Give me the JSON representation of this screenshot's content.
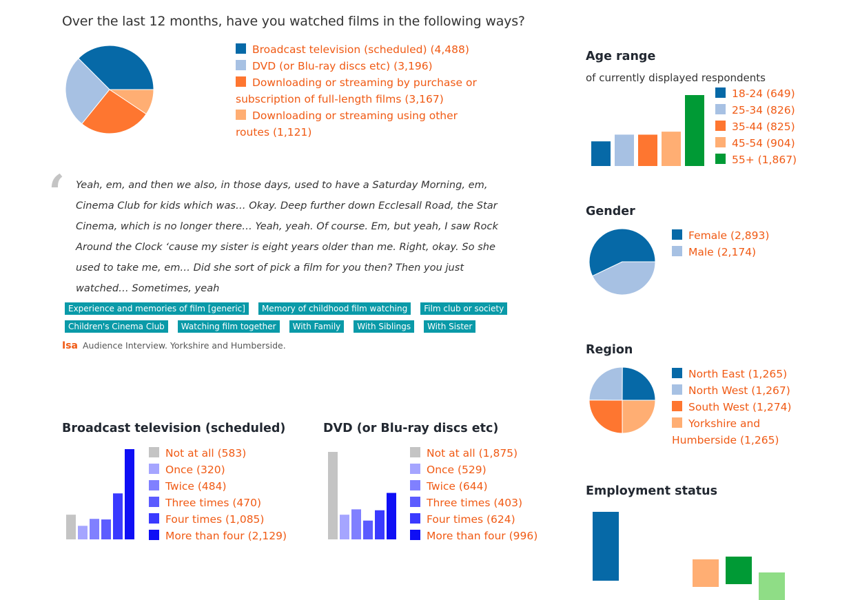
{
  "colors": {
    "blue": "#0669a7",
    "light_blue": "#a7c1e3",
    "orange": "#fe7630",
    "light_orange": "#ffae73",
    "green": "#009a35",
    "light_green": "#8fdd86",
    "legend_text": "#f05a14",
    "tag_bg": "#0a9aa8"
  },
  "question": "Over the last 12 months, have you watched films in the following ways?",
  "quote": {
    "text": "Yeah, em, and then we also, in those days, used to have a Saturday Morning, em, Cinema Club for kids which was… Okay. Deep further down Ecclesall Road, the Star Cinema, which is no longer there… Yeah, yeah. Of course. Em, but yeah, I saw Rock Around the Clock ‘cause my sister is eight years older than me. Right, okay. So she used to take me, em… Did she sort of pick a film for you then? Then you just watched… Sometimes, yeah",
    "tags": [
      "Experience and memories of film [generic]",
      "Memory of childhood film watching",
      "Film club or society",
      "Children's Cinema Club",
      "Watching film together",
      "With Family",
      "With Siblings",
      "With Sister"
    ],
    "speaker": "Isa",
    "source": "Audience Interview. Yorkshire and Humberside."
  },
  "chart_data": [
    {
      "type": "pie",
      "id": "ways",
      "title": "",
      "categories": [
        "Broadcast television (scheduled)",
        "DVD (or Blu-ray discs etc)",
        "Downloading or streaming by purchase or subscription of full-length films",
        "Downloading or streaming using other routes"
      ],
      "values": [
        4488,
        3196,
        3167,
        1121
      ],
      "colors": [
        "#0669a7",
        "#a7c1e3",
        "#fe7630",
        "#ffae73"
      ],
      "legend": "right"
    },
    {
      "type": "bar",
      "id": "age",
      "title": "Age range",
      "subtitle": "of currently displayed respondents",
      "categories": [
        "18-24",
        "25-34",
        "35-44",
        "45-54",
        "55+"
      ],
      "values": [
        649,
        826,
        825,
        904,
        1867
      ],
      "colors": [
        "#0669a7",
        "#a7c1e3",
        "#fe7630",
        "#ffae73",
        "#009a35"
      ],
      "legend": "right"
    },
    {
      "type": "pie",
      "id": "gender",
      "title": "Gender",
      "categories": [
        "Female",
        "Male"
      ],
      "values": [
        2893,
        2174
      ],
      "colors": [
        "#0669a7",
        "#a7c1e3"
      ],
      "legend": "right"
    },
    {
      "type": "pie",
      "id": "region",
      "title": "Region",
      "categories": [
        "North East",
        "North West",
        "South West",
        "Yorkshire and Humberside"
      ],
      "values": [
        1265,
        1267,
        1274,
        1265
      ],
      "colors": [
        "#0669a7",
        "#a7c1e3",
        "#fe7630",
        "#ffae73"
      ],
      "legend": "right"
    },
    {
      "type": "bar",
      "id": "broadcast",
      "title": "Broadcast television (scheduled)",
      "categories": [
        "Not at all",
        "Once",
        "Twice",
        "Three times",
        "Four times",
        "More than four"
      ],
      "values": [
        583,
        320,
        484,
        470,
        1085,
        2129
      ],
      "colors": [
        "#c4c4c4",
        "#a5a5ff",
        "#8080ff",
        "#5c5cff",
        "#3a3aff",
        "#0f0ff5"
      ],
      "legend": "right"
    },
    {
      "type": "bar",
      "id": "dvd",
      "title": "DVD (or Blu-ray discs etc)",
      "categories": [
        "Not at all",
        "Once",
        "Twice",
        "Three times",
        "Four times",
        "More than four"
      ],
      "values": [
        1875,
        529,
        644,
        403,
        624,
        996
      ],
      "colors": [
        "#c4c4c4",
        "#a5a5ff",
        "#8080ff",
        "#5c5cff",
        "#3a3aff",
        "#0f0ff5"
      ],
      "legend": "right"
    },
    {
      "type": "bar",
      "id": "employment",
      "title": "Employment status",
      "categories": [],
      "values": [],
      "colors": [
        "#0669a7",
        "#ffae73",
        "#009a35",
        "#8fdd86"
      ]
    }
  ]
}
